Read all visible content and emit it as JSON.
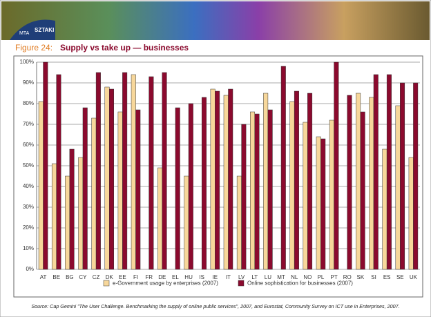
{
  "header": {
    "logo_top": "MTA",
    "logo_bottom": "SZTAKI"
  },
  "chart_data": {
    "type": "bar",
    "figure_label": "Figure 24:",
    "title": "Supply vs take up — businesses",
    "source": "Source: Cap Gemini \"The User Challenge. Benchmarking the supply of online public services\", 2007, and Eurostat, Community Survey on ICT use in Enterprises, 2007.",
    "categories": [
      "AT",
      "BE",
      "BG",
      "CY",
      "CZ",
      "DK",
      "EE",
      "FI",
      "FR",
      "DE",
      "EL",
      "HU",
      "IS",
      "IE",
      "IT",
      "LV",
      "LT",
      "LU",
      "MT",
      "NL",
      "NO",
      "PL",
      "PT",
      "RO",
      "SK",
      "SI",
      "ES",
      "SE",
      "UK"
    ],
    "series": [
      {
        "name": "e-Government usage by enterprises (2007)",
        "color": "#f7d79b",
        "values": [
          81,
          51,
          45,
          54,
          73,
          88,
          76,
          94,
          null,
          49,
          null,
          45,
          null,
          87,
          84,
          45,
          76,
          85,
          null,
          81,
          71,
          64,
          72,
          null,
          85,
          83,
          58,
          79,
          54
        ]
      },
      {
        "name": "Online sophistication for businesses (2007)",
        "color": "#8b0a2e",
        "values": [
          100,
          94,
          58,
          78,
          95,
          87,
          95,
          77,
          93,
          95,
          78,
          80,
          83,
          86,
          87,
          70,
          75,
          77,
          98,
          86,
          85,
          63,
          100,
          84,
          76,
          94,
          94,
          90,
          90
        ]
      }
    ],
    "ylim": [
      0,
      100
    ],
    "yticks": [
      {
        "value": 0,
        "label": "0%"
      },
      {
        "value": 10,
        "label": "10%"
      },
      {
        "value": 20,
        "label": "20%"
      },
      {
        "value": 30,
        "label": "30%"
      },
      {
        "value": 40,
        "label": "40%"
      },
      {
        "value": 50,
        "label": "50%"
      },
      {
        "value": 60,
        "label": "60%"
      },
      {
        "value": 70,
        "label": "70%"
      },
      {
        "value": 80,
        "label": "80%"
      },
      {
        "value": 90,
        "label": "90%"
      },
      {
        "value": 100,
        "label": "100%"
      }
    ],
    "grid": true
  }
}
